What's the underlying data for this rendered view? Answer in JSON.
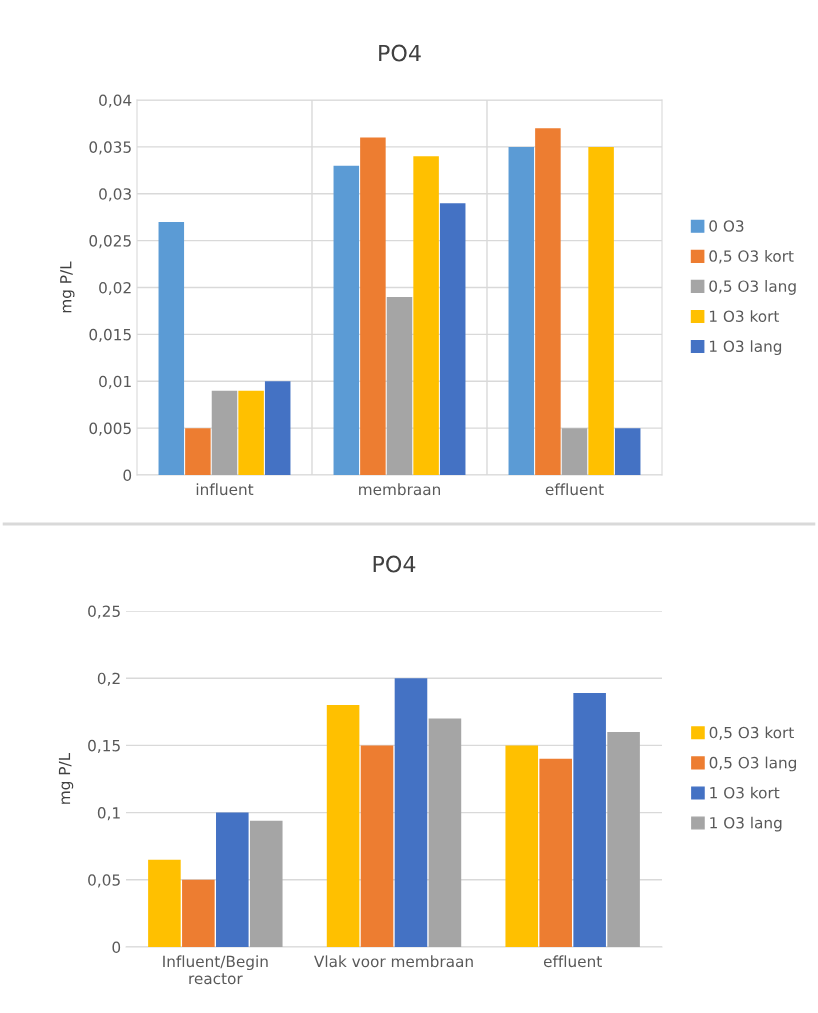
{
  "chart_data": [
    {
      "type": "bar",
      "title": "PO4",
      "ylabel": "mg P/L",
      "categories": [
        "influent",
        "membraan",
        "effluent"
      ],
      "series": [
        {
          "name": "0 O3",
          "color": "#5b9bd5",
          "values": [
            0.027,
            0.033,
            0.035
          ]
        },
        {
          "name": "0,5 O3 kort",
          "color": "#ed7d31",
          "values": [
            0.005,
            0.036,
            0.037
          ]
        },
        {
          "name": "0,5 O3 lang",
          "color": "#a5a5a5",
          "values": [
            0.009,
            0.019,
            0.005
          ]
        },
        {
          "name": "1 O3 kort",
          "color": "#ffc000",
          "values": [
            0.009,
            0.034,
            0.035
          ]
        },
        {
          "name": "1 O3 lang",
          "color": "#4472c4",
          "values": [
            0.01,
            0.029,
            0.005
          ]
        }
      ],
      "ylim": [
        0,
        0.04
      ],
      "yticks": [
        0,
        {
          "value": 0.005,
          "label": "0,005"
        },
        {
          "value": 0.01,
          "label": "0,01"
        },
        {
          "value": 0.015,
          "label": "0,015"
        },
        {
          "value": 0.02,
          "label": "0,02"
        },
        {
          "value": 0.025,
          "label": "0,025"
        },
        {
          "value": 0.03,
          "label": "0,03"
        },
        {
          "value": 0.035,
          "label": "0,035"
        },
        {
          "value": 0.04,
          "label": "0,04"
        }
      ],
      "grid": true,
      "legend": "right"
    },
    {
      "type": "bar",
      "title": "PO4",
      "ylabel": "mg P/L",
      "categories": [
        "Influent/Begin reactor",
        "Vlak voor membraan",
        "effluent"
      ],
      "series": [
        {
          "name": "0,5 O3 kort",
          "color": "#ffc000",
          "values": [
            0.065,
            0.18,
            0.15
          ]
        },
        {
          "name": "0,5 O3 lang",
          "color": "#ed7d31",
          "values": [
            0.05,
            0.15,
            0.14
          ]
        },
        {
          "name": "1 O3 kort",
          "color": "#4472c4",
          "values": [
            0.1,
            0.2,
            0.189
          ]
        },
        {
          "name": "1 O3 lang",
          "color": "#a5a5a5",
          "values": [
            0.094,
            0.17,
            0.16
          ]
        }
      ],
      "ylim": [
        0,
        0.25
      ],
      "yticks": [
        0,
        {
          "value": 0.05,
          "label": "0,05"
        },
        {
          "value": 0.1,
          "label": "0,1"
        },
        {
          "value": 0.15,
          "label": "0,15"
        },
        {
          "value": 0.2,
          "label": "0,2"
        },
        {
          "value": 0.25,
          "label": "0,25"
        }
      ],
      "grid": "y",
      "legend": "right"
    }
  ]
}
